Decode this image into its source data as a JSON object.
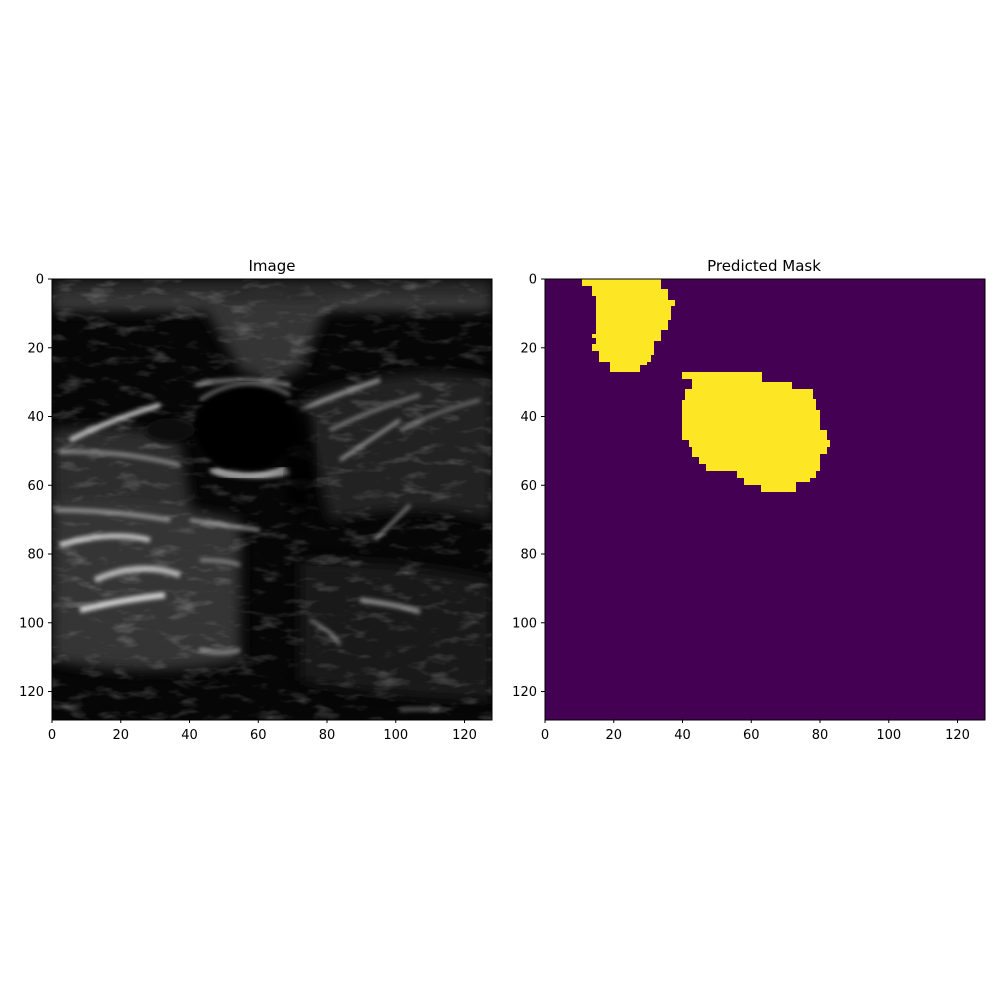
{
  "colors": {
    "background": "#ffffff",
    "frame": "#000000",
    "mask_background": "#440154",
    "mask_foreground": "#fde725",
    "ultrasound_dark": "#050505",
    "ultrasound_bright": "#d8d8d8"
  },
  "panels": [
    {
      "id": "image",
      "title": "Image",
      "x_ticks": [
        "0",
        "20",
        "40",
        "60",
        "80",
        "100",
        "120"
      ],
      "y_ticks": [
        "0",
        "20",
        "40",
        "60",
        "80",
        "100",
        "120"
      ],
      "x_range": [
        0,
        128
      ],
      "y_range": [
        0,
        128
      ]
    },
    {
      "id": "mask",
      "title": "Predicted Mask",
      "x_ticks": [
        "0",
        "20",
        "40",
        "60",
        "80",
        "100",
        "120"
      ],
      "y_ticks": [
        "0",
        "20",
        "40",
        "60",
        "80",
        "100",
        "120"
      ],
      "x_range": [
        0,
        128
      ],
      "y_range": [
        0,
        128
      ]
    }
  ]
}
